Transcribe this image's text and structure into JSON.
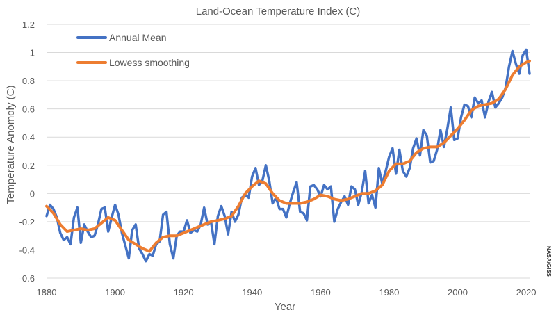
{
  "chart_data": {
    "type": "line",
    "title": "Land-Ocean Temperature Index (C)",
    "xlabel": "Year",
    "ylabel": "Temperature Anomoly (C)",
    "xlim": [
      1880,
      2021
    ],
    "ylim": [
      -0.6,
      1.2
    ],
    "xticks": [
      1880,
      1900,
      1920,
      1940,
      1960,
      1980,
      2000,
      2020
    ],
    "yticks": [
      -0.6,
      -0.4,
      -0.2,
      0,
      0.2,
      0.4,
      0.6,
      0.8,
      1,
      1.2
    ],
    "ytick_labels": [
      "-0.6",
      "-0.4",
      "-0.2",
      "0",
      "0.2",
      "0.4",
      "0.6",
      "0.8",
      "1",
      "1.2"
    ],
    "grid": "horizontal",
    "legend_position": "top-left",
    "credit": "NASA/GISS",
    "series": [
      {
        "name": "Annual Mean",
        "color": "#4472c4",
        "x": [
          1880,
          1881,
          1882,
          1883,
          1884,
          1885,
          1886,
          1887,
          1888,
          1889,
          1890,
          1891,
          1892,
          1893,
          1894,
          1895,
          1896,
          1897,
          1898,
          1899,
          1900,
          1901,
          1902,
          1903,
          1904,
          1905,
          1906,
          1907,
          1908,
          1909,
          1910,
          1911,
          1912,
          1913,
          1914,
          1915,
          1916,
          1917,
          1918,
          1919,
          1920,
          1921,
          1922,
          1923,
          1924,
          1925,
          1926,
          1927,
          1928,
          1929,
          1930,
          1931,
          1932,
          1933,
          1934,
          1935,
          1936,
          1937,
          1938,
          1939,
          1940,
          1941,
          1942,
          1943,
          1944,
          1945,
          1946,
          1947,
          1948,
          1949,
          1950,
          1951,
          1952,
          1953,
          1954,
          1955,
          1956,
          1957,
          1958,
          1959,
          1960,
          1961,
          1962,
          1963,
          1964,
          1965,
          1966,
          1967,
          1968,
          1969,
          1970,
          1971,
          1972,
          1973,
          1974,
          1975,
          1976,
          1977,
          1978,
          1979,
          1980,
          1981,
          1982,
          1983,
          1984,
          1985,
          1986,
          1987,
          1988,
          1989,
          1990,
          1991,
          1992,
          1993,
          1994,
          1995,
          1996,
          1997,
          1998,
          1999,
          2000,
          2001,
          2002,
          2003,
          2004,
          2005,
          2006,
          2007,
          2008,
          2009,
          2010,
          2011,
          2012,
          2013,
          2014,
          2015,
          2016,
          2017,
          2018,
          2019,
          2020,
          2021
        ],
        "values": [
          -0.16,
          -0.08,
          -0.11,
          -0.17,
          -0.28,
          -0.33,
          -0.31,
          -0.36,
          -0.17,
          -0.1,
          -0.35,
          -0.22,
          -0.27,
          -0.31,
          -0.3,
          -0.22,
          -0.11,
          -0.1,
          -0.27,
          -0.17,
          -0.08,
          -0.15,
          -0.28,
          -0.37,
          -0.46,
          -0.26,
          -0.22,
          -0.39,
          -0.43,
          -0.48,
          -0.43,
          -0.44,
          -0.36,
          -0.34,
          -0.15,
          -0.13,
          -0.36,
          -0.46,
          -0.3,
          -0.27,
          -0.27,
          -0.19,
          -0.28,
          -0.26,
          -0.27,
          -0.22,
          -0.1,
          -0.22,
          -0.2,
          -0.36,
          -0.16,
          -0.09,
          -0.16,
          -0.29,
          -0.13,
          -0.2,
          -0.15,
          -0.03,
          -0.01,
          -0.03,
          0.12,
          0.18,
          0.06,
          0.09,
          0.2,
          0.09,
          -0.07,
          -0.03,
          -0.11,
          -0.11,
          -0.17,
          -0.07,
          0.01,
          0.08,
          -0.13,
          -0.14,
          -0.19,
          0.05,
          0.06,
          0.03,
          -0.02,
          0.06,
          0.03,
          0.05,
          -0.2,
          -0.11,
          -0.06,
          -0.02,
          -0.08,
          0.05,
          0.03,
          -0.08,
          0.01,
          0.16,
          -0.07,
          -0.01,
          -0.1,
          0.18,
          0.07,
          0.16,
          0.26,
          0.32,
          0.14,
          0.31,
          0.16,
          0.12,
          0.18,
          0.32,
          0.39,
          0.27,
          0.45,
          0.41,
          0.22,
          0.23,
          0.31,
          0.45,
          0.33,
          0.46,
          0.61,
          0.38,
          0.39,
          0.54,
          0.63,
          0.62,
          0.54,
          0.68,
          0.64,
          0.66,
          0.54,
          0.65,
          0.72,
          0.61,
          0.64,
          0.68,
          0.75,
          0.9,
          1.01,
          0.92,
          0.85,
          0.98,
          1.02,
          0.85
        ]
      },
      {
        "name": "Lowess smoothing",
        "color": "#ed7d31",
        "x": [
          1880,
          1882,
          1884,
          1886,
          1888,
          1890,
          1892,
          1894,
          1896,
          1898,
          1900,
          1902,
          1904,
          1906,
          1908,
          1910,
          1912,
          1914,
          1916,
          1918,
          1920,
          1922,
          1924,
          1926,
          1928,
          1930,
          1932,
          1934,
          1936,
          1938,
          1940,
          1942,
          1944,
          1946,
          1948,
          1950,
          1952,
          1954,
          1956,
          1958,
          1960,
          1962,
          1964,
          1966,
          1968,
          1970,
          1972,
          1974,
          1976,
          1978,
          1980,
          1982,
          1984,
          1986,
          1988,
          1990,
          1992,
          1994,
          1996,
          1998,
          2000,
          2002,
          2004,
          2006,
          2008,
          2010,
          2012,
          2014,
          2016,
          2018,
          2020,
          2021
        ],
        "values": [
          -0.09,
          -0.14,
          -0.22,
          -0.27,
          -0.26,
          -0.25,
          -0.26,
          -0.25,
          -0.21,
          -0.17,
          -0.19,
          -0.26,
          -0.33,
          -0.36,
          -0.39,
          -0.41,
          -0.35,
          -0.31,
          -0.3,
          -0.3,
          -0.28,
          -0.26,
          -0.24,
          -0.22,
          -0.2,
          -0.19,
          -0.18,
          -0.16,
          -0.09,
          0.0,
          0.05,
          0.09,
          0.07,
          0.0,
          -0.05,
          -0.07,
          -0.07,
          -0.07,
          -0.06,
          -0.04,
          -0.01,
          -0.02,
          -0.04,
          -0.05,
          -0.04,
          -0.02,
          0.0,
          0.0,
          0.02,
          0.06,
          0.16,
          0.21,
          0.21,
          0.23,
          0.29,
          0.32,
          0.33,
          0.33,
          0.36,
          0.41,
          0.46,
          0.52,
          0.59,
          0.62,
          0.63,
          0.64,
          0.67,
          0.74,
          0.84,
          0.9,
          0.93,
          0.94
        ]
      }
    ]
  }
}
